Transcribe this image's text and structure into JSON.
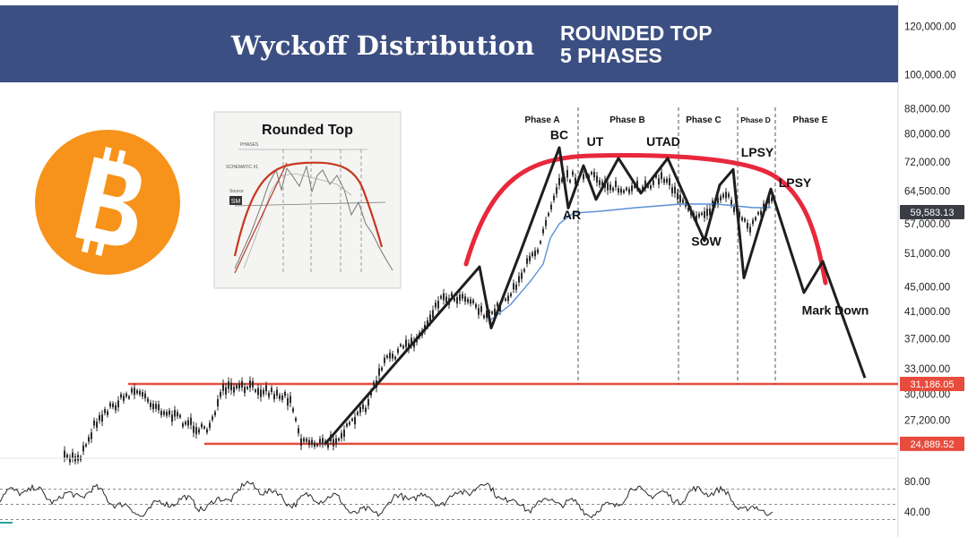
{
  "header": {
    "title": "Wyckoff Distribution",
    "subtitle_line1": "ROUNDED TOP",
    "subtitle_line2": "5 PHASES"
  },
  "inset": {
    "title": "Rounded Top",
    "label_phases": "PHASES",
    "label_schematic": "SCHEMATIC #1",
    "label_source": "Source",
    "label_badge": "SM"
  },
  "colors": {
    "header_bg": "#3c4f82",
    "price_line": "#1e1e1e",
    "rounded_top": "#e8283c",
    "support": "#e74c3c",
    "moving_average": "#5b8fd6",
    "bitcoin": "#f7931a"
  },
  "chart_data": {
    "type": "line",
    "title": "Wyckoff Distribution",
    "y_scale": "log",
    "y_ticks": [
      {
        "value": 120000,
        "label": "120,000.00"
      },
      {
        "value": 100000,
        "label": "100,000.00"
      },
      {
        "value": 88000,
        "label": "88,000.00"
      },
      {
        "value": 80000,
        "label": "80,000.00"
      },
      {
        "value": 72000,
        "label": "72,000.00"
      },
      {
        "value": 64500,
        "label": "64,500.00"
      },
      {
        "value": 57000,
        "label": "57,000.00"
      },
      {
        "value": 51000,
        "label": "51,000.00"
      },
      {
        "value": 45000,
        "label": "45,000.00"
      },
      {
        "value": 41000,
        "label": "41,000.00"
      },
      {
        "value": 37000,
        "label": "37,000.00"
      },
      {
        "value": 33000,
        "label": "33,000.00"
      },
      {
        "value": 30000,
        "label": "30,000.00"
      },
      {
        "value": 27200,
        "label": "27,200.00"
      }
    ],
    "price_tags": [
      {
        "value": 59583.13,
        "label": "59,583.13",
        "kind": "current"
      },
      {
        "value": 31186.05,
        "label": "31,186.05",
        "kind": "resistance"
      },
      {
        "value": 24889.52,
        "label": "24,889.52",
        "kind": "support"
      }
    ],
    "phases": [
      {
        "name": "Phase A"
      },
      {
        "name": "Phase B"
      },
      {
        "name": "Phase C"
      },
      {
        "name": "Phase D"
      },
      {
        "name": "Phase E"
      }
    ],
    "annotations": [
      {
        "text": "BC",
        "price": 78500
      },
      {
        "text": "UT",
        "price": 76500
      },
      {
        "text": "UTAD",
        "price": 76500
      },
      {
        "text": "LPSY",
        "price": 73500
      },
      {
        "text": "LPSY",
        "price": 65500
      },
      {
        "text": "AR",
        "price": 58000
      },
      {
        "text": "SOW",
        "price": 52500
      },
      {
        "text": "Mark Down",
        "price": 40500
      }
    ],
    "price_path": [
      24900,
      28000,
      32000,
      36500,
      43000,
      48500,
      38500,
      51000,
      72000,
      60500,
      71000,
      62500,
      73000,
      64000,
      70000,
      54500,
      66000,
      53500,
      64500,
      46000,
      49500,
      31500
    ],
    "rsi": {
      "ticks": [
        {
          "value": 80,
          "label": "80.00"
        },
        {
          "value": 40,
          "label": "40.00"
        }
      ],
      "upper": 70,
      "lower": 30
    }
  }
}
